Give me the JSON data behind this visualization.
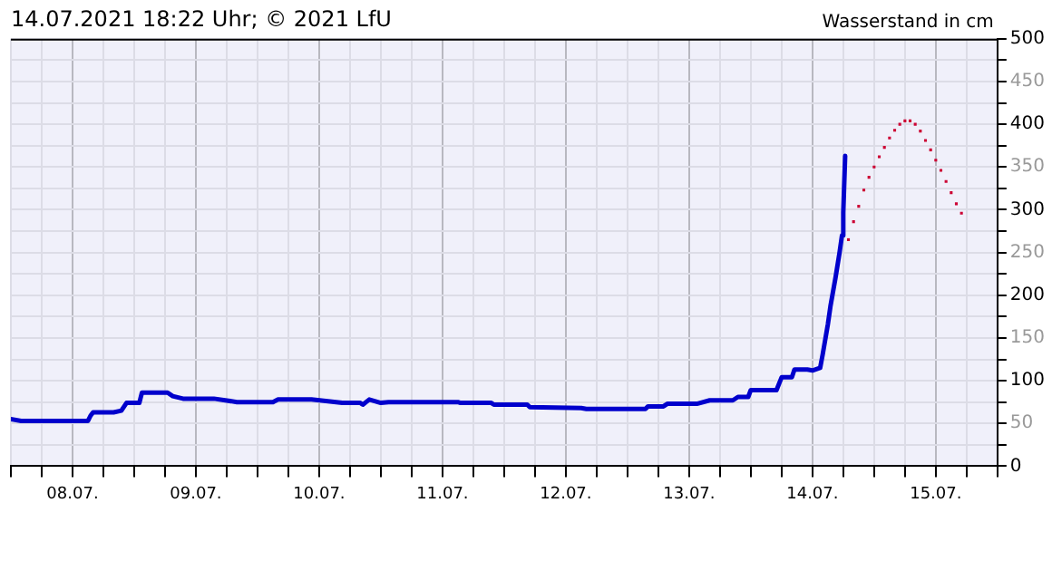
{
  "chart_data": {
    "type": "line",
    "title": "14.07.2021 18:22 Uhr; © 2021 LfU",
    "ylabel": "Wasserstand in cm",
    "xlim": [
      "2021-07-08T00:00",
      "2021-07-16T00:00"
    ],
    "xticks": [
      {
        "value": "2021-07-08T00:00",
        "label": null
      },
      {
        "value": "2021-07-08T06:00",
        "label": null
      },
      {
        "value": "2021-07-08T12:00",
        "label": "08.07."
      },
      {
        "value": "2021-07-08T18:00",
        "label": null
      },
      {
        "value": "2021-07-09T00:00",
        "label": null
      },
      {
        "value": "2021-07-09T06:00",
        "label": null
      },
      {
        "value": "2021-07-09T12:00",
        "label": "09.07."
      },
      {
        "value": "2021-07-09T18:00",
        "label": null
      },
      {
        "value": "2021-07-10T00:00",
        "label": null
      },
      {
        "value": "2021-07-10T06:00",
        "label": null
      },
      {
        "value": "2021-07-10T12:00",
        "label": "10.07."
      },
      {
        "value": "2021-07-10T18:00",
        "label": null
      },
      {
        "value": "2021-07-11T00:00",
        "label": null
      },
      {
        "value": "2021-07-11T06:00",
        "label": null
      },
      {
        "value": "2021-07-11T12:00",
        "label": "11.07."
      },
      {
        "value": "2021-07-11T18:00",
        "label": null
      },
      {
        "value": "2021-07-12T00:00",
        "label": null
      },
      {
        "value": "2021-07-12T06:00",
        "label": null
      },
      {
        "value": "2021-07-12T12:00",
        "label": "12.07."
      },
      {
        "value": "2021-07-12T18:00",
        "label": null
      },
      {
        "value": "2021-07-13T00:00",
        "label": null
      },
      {
        "value": "2021-07-13T06:00",
        "label": null
      },
      {
        "value": "2021-07-13T12:00",
        "label": "13.07."
      },
      {
        "value": "2021-07-13T18:00",
        "label": null
      },
      {
        "value": "2021-07-14T00:00",
        "label": null
      },
      {
        "value": "2021-07-14T06:00",
        "label": null
      },
      {
        "value": "2021-07-14T12:00",
        "label": "14.07."
      },
      {
        "value": "2021-07-14T18:00",
        "label": null
      },
      {
        "value": "2021-07-15T00:00",
        "label": null
      },
      {
        "value": "2021-07-15T06:00",
        "label": null
      },
      {
        "value": "2021-07-15T12:00",
        "label": "15.07."
      },
      {
        "value": "2021-07-15T18:00",
        "label": null
      },
      {
        "value": "2021-07-16T00:00",
        "label": null
      }
    ],
    "ylim": [
      0,
      500
    ],
    "yticks": [
      0,
      {
        "value": 25,
        "label": null
      },
      50,
      {
        "value": 75,
        "label": null
      },
      100,
      {
        "value": 125,
        "label": null
      },
      150,
      {
        "value": 175,
        "label": null
      },
      200,
      {
        "value": 225,
        "label": null
      },
      250,
      {
        "value": 275,
        "label": null
      },
      300,
      {
        "value": 325,
        "label": null
      },
      350,
      {
        "value": 375,
        "label": null
      },
      400,
      {
        "value": 425,
        "label": null
      },
      450,
      {
        "value": 475,
        "label": null
      },
      500
    ],
    "grid": true,
    "legend": false,
    "series": [
      {
        "color": "#0000cc",
        "marker": "none",
        "line_style": "solid",
        "x": [
          "2021-07-08T00:00",
          "2021-07-08T02:00",
          "2021-07-08T15:00",
          "2021-07-08T15:30",
          "2021-07-08T16:00",
          "2021-07-08T20:00",
          "2021-07-08T21:30",
          "2021-07-08T22:30",
          "2021-07-09T01:00",
          "2021-07-09T01:30",
          "2021-07-09T06:30",
          "2021-07-09T07:30",
          "2021-07-09T09:30",
          "2021-07-09T15:30",
          "2021-07-09T20:00",
          "2021-07-10T03:00",
          "2021-07-10T04:00",
          "2021-07-10T10:30",
          "2021-07-10T16:30",
          "2021-07-10T20:00",
          "2021-07-10T20:30",
          "2021-07-10T21:45",
          "2021-07-11T00:00",
          "2021-07-11T01:30",
          "2021-07-11T15:00",
          "2021-07-11T15:30",
          "2021-07-11T21:30",
          "2021-07-11T22:00",
          "2021-07-12T04:30",
          "2021-07-12T05:00",
          "2021-07-12T15:00",
          "2021-07-12T16:00",
          "2021-07-13T03:30",
          "2021-07-13T04:00",
          "2021-07-13T07:00",
          "2021-07-13T07:45",
          "2021-07-13T13:30",
          "2021-07-13T16:00",
          "2021-07-13T20:30",
          "2021-07-13T21:30",
          "2021-07-13T23:30",
          "2021-07-14T00:00",
          "2021-07-14T05:00",
          "2021-07-14T06:00",
          "2021-07-14T08:00",
          "2021-07-14T08:30",
          "2021-07-14T11:00",
          "2021-07-14T12:00",
          "2021-07-14T13:30",
          "2021-07-14T14:00",
          "2021-07-14T15:00",
          "2021-07-14T15:30",
          "2021-07-14T16:30",
          "2021-07-14T17:15",
          "2021-07-14T17:45",
          "2021-07-14T18:00",
          "2021-07-14T18:22"
        ],
        "values": [
          55,
          53,
          53,
          59,
          63,
          63,
          65,
          74,
          74,
          86,
          86,
          82,
          79,
          79,
          75,
          75,
          78,
          78,
          74,
          74,
          72,
          78,
          74,
          75,
          75,
          74,
          74,
          72,
          72,
          69,
          68,
          67,
          67,
          70,
          70,
          73,
          73,
          77,
          77,
          81,
          81,
          89,
          89,
          104,
          104,
          113,
          113,
          112,
          115,
          131,
          166,
          187,
          221,
          249,
          270,
          297,
          363
        ]
      },
      {
        "type": "scatter",
        "color": "#cc0033",
        "marker": "square",
        "x": [
          "2021-07-14T19:00",
          "2021-07-14T20:00",
          "2021-07-14T21:00",
          "2021-07-14T22:00",
          "2021-07-14T23:00",
          "2021-07-15T00:00",
          "2021-07-15T01:00",
          "2021-07-15T02:00",
          "2021-07-15T03:00",
          "2021-07-15T04:00",
          "2021-07-15T05:00",
          "2021-07-15T06:00",
          "2021-07-15T07:00",
          "2021-07-15T08:00",
          "2021-07-15T09:00",
          "2021-07-15T10:00",
          "2021-07-15T11:00",
          "2021-07-15T12:00",
          "2021-07-15T13:00",
          "2021-07-15T14:00",
          "2021-07-15T15:00",
          "2021-07-15T16:00",
          "2021-07-15T17:00"
        ],
        "values": [
          265,
          286,
          304,
          323,
          338,
          350,
          362,
          373,
          384,
          393,
          400,
          404,
          404,
          400,
          392,
          381,
          370,
          358,
          346,
          333,
          320,
          307,
          296
        ]
      }
    ]
  }
}
